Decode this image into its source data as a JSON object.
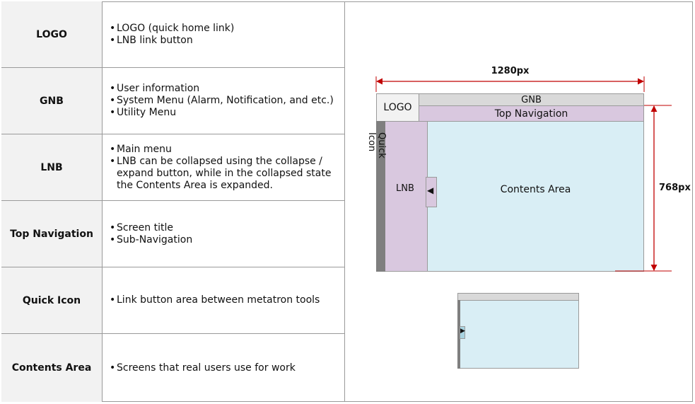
{
  "table": {
    "rows": [
      {
        "label": "LOGO",
        "bullets": [
          "LOGO (quick home link)",
          "LNB link button"
        ]
      },
      {
        "label": "GNB",
        "bullets": [
          "User information",
          "System Menu (Alarm, Notification, and etc.)",
          "Utility Menu"
        ]
      },
      {
        "label": "LNB",
        "bullets": [
          "Main menu",
          "LNB can be collapsed using the collapse / expand button, while in the collapsed state the Contents Area is expanded."
        ]
      },
      {
        "label": "Top Navigation",
        "bullets": [
          "Screen title",
          "Sub-Navigation"
        ]
      },
      {
        "label": "Quick Icon",
        "bullets": [
          "Link button area between metatron tools"
        ]
      },
      {
        "label": "Contents Area",
        "bullets": [
          "Screens that real users use for work"
        ]
      }
    ]
  },
  "diagram": {
    "logo": "LOGO",
    "gnb": "GNB",
    "top_navigation": "Top Navigation",
    "quick_icon": "Quick Icon",
    "lnb": "LNB",
    "contents_area": "Contents Area",
    "width_label": "1280px",
    "height_label": "768px",
    "collapse_arrow": "◀",
    "expand_arrow": "▶"
  },
  "colors": {
    "border": "#9a9a9a",
    "label_bg": "#f2f2f2",
    "gnb": "#d9d9d9",
    "lnb": "#d9c8df",
    "contents": "#d9eef5",
    "quick": "#7f7f7f",
    "dimension": "#c00000"
  }
}
